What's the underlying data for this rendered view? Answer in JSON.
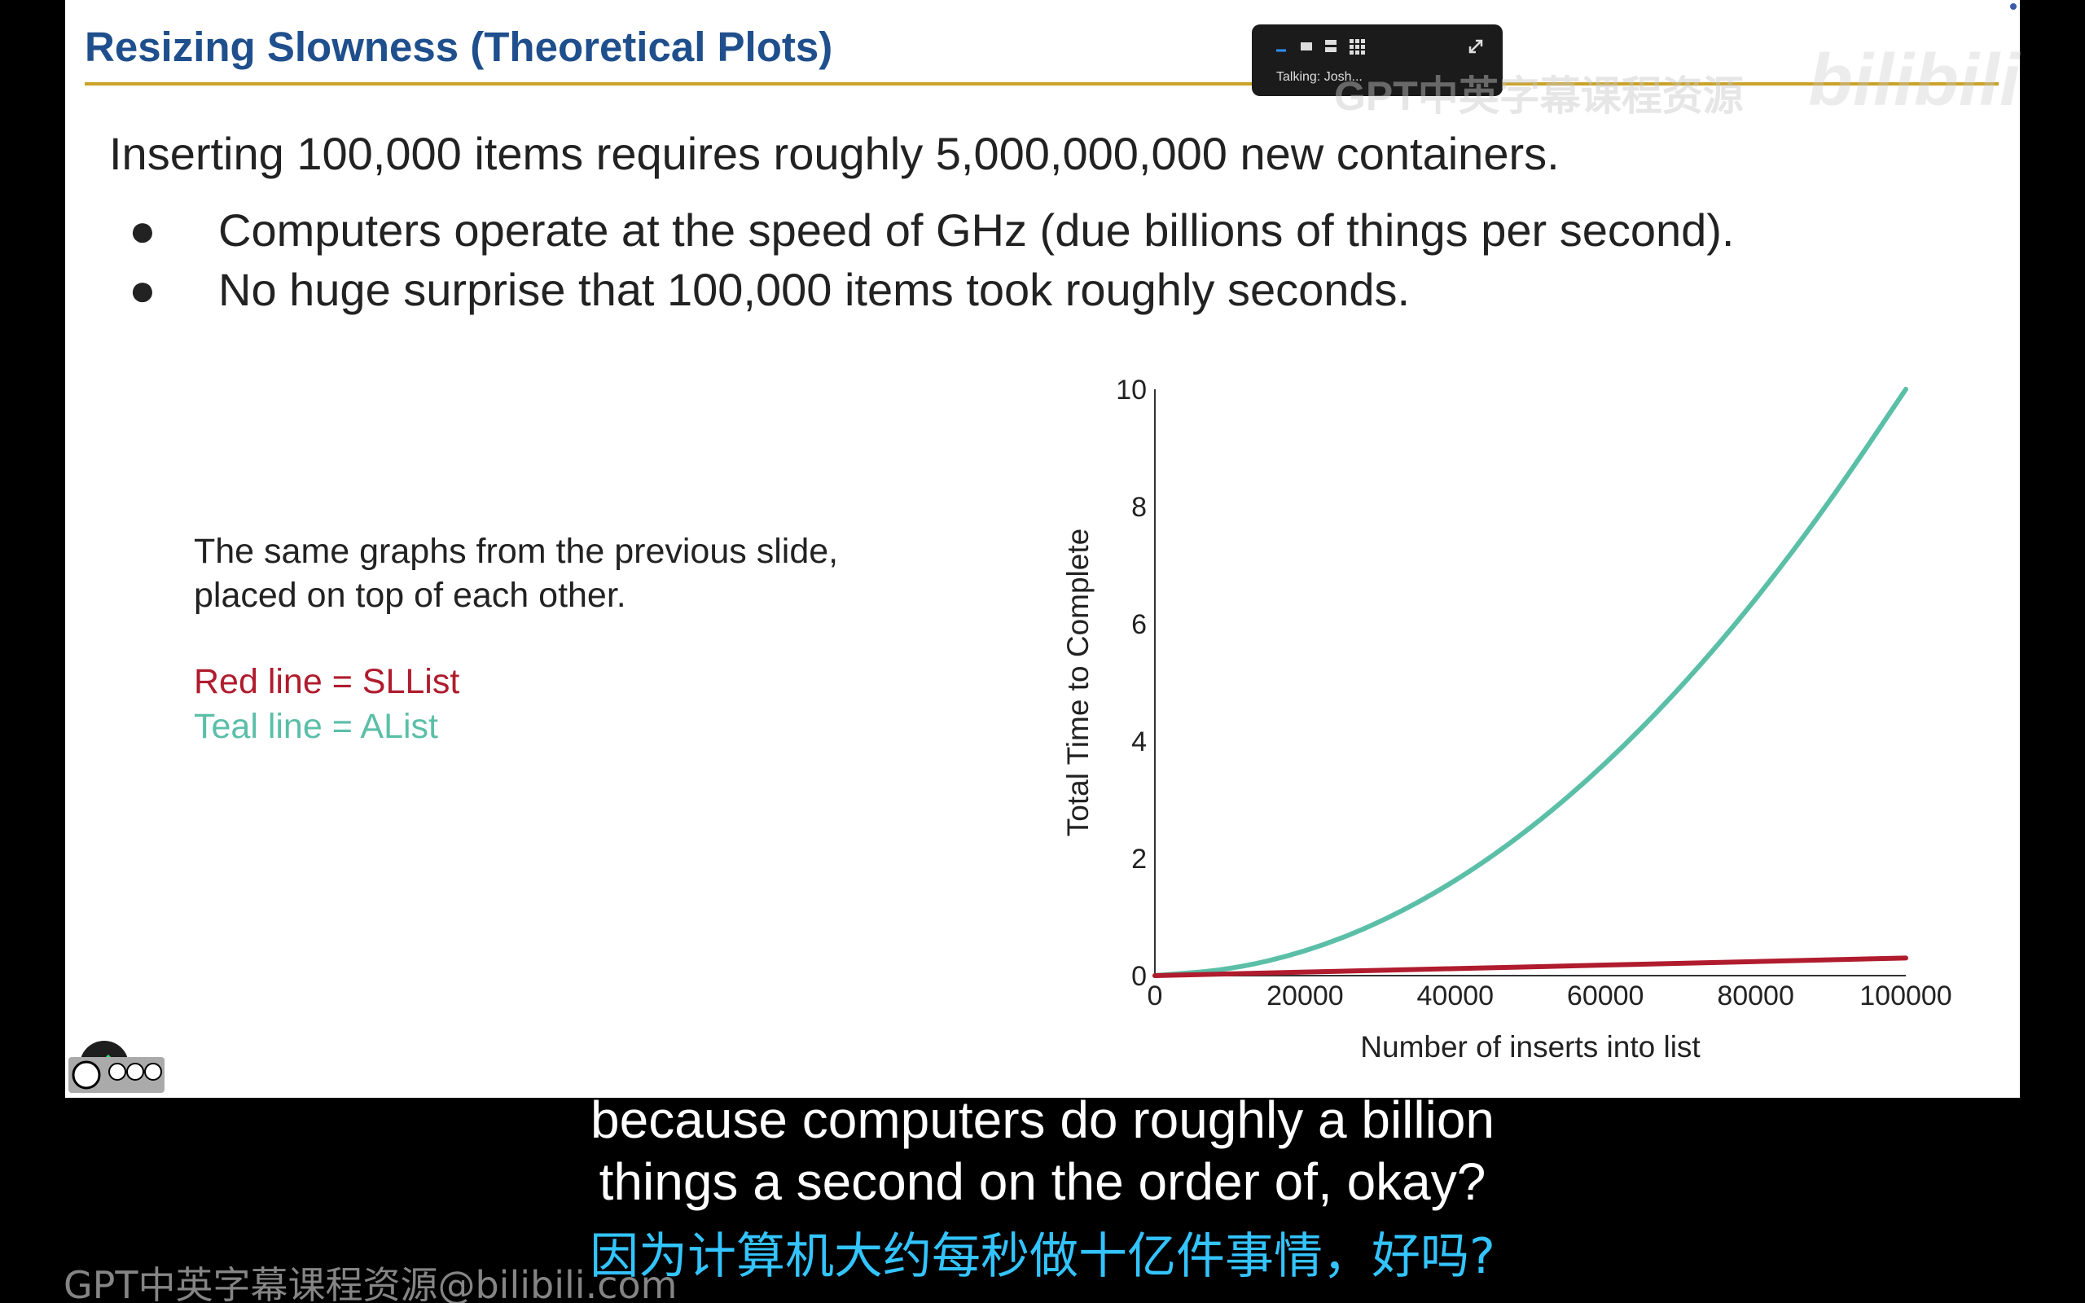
{
  "slide": {
    "title": "Resizing Slowness (Theoretical Plots)",
    "lead": "Inserting 100,000 items requires roughly 5,000,000,000 new containers.",
    "bullets": [
      {
        "marker": "●",
        "text": "Computers operate at the speed of GHz (due billions of things per second)."
      },
      {
        "marker": "●",
        "text": "No huge surprise that 100,000 items took roughly seconds."
      }
    ],
    "caption": "The same graphs from the previous slide, placed on top of each other.",
    "legend_red": "Red line = SLList",
    "legend_teal": "Teal line = AList",
    "colors": {
      "red": "#b01c2e",
      "teal": "#5bbfa8",
      "title": "#1f4f8c",
      "rule": "#c9a227"
    }
  },
  "chart_data": {
    "type": "line",
    "xlabel": "Number of inserts into list",
    "ylabel": "Total Time to Complete",
    "xlim": [
      0,
      100000
    ],
    "ylim": [
      0,
      10
    ],
    "xticks": [
      0,
      20000,
      40000,
      60000,
      80000,
      100000
    ],
    "yticks": [
      0,
      2,
      4,
      6,
      8,
      10
    ],
    "grid": false,
    "series": [
      {
        "color": "#5bbfa8",
        "x": [
          0,
          10000,
          20000,
          30000,
          40000,
          50000,
          60000,
          70000,
          80000,
          90000,
          100000
        ],
        "values": [
          0,
          0.1,
          0.4,
          0.9,
          1.6,
          2.5,
          3.6,
          4.9,
          6.4,
          8.1,
          10
        ]
      },
      {
        "color": "#b01c2e",
        "x": [
          0,
          20000,
          40000,
          60000,
          80000,
          100000
        ],
        "values": [
          0,
          0.06,
          0.12,
          0.18,
          0.24,
          0.3
        ]
      }
    ]
  },
  "call_panel": {
    "talking": "Talking: Josh..."
  },
  "watermark": {
    "top_text": "GPT中英字幕课程资源",
    "logo": "bilibili",
    "bottom": "GPT中英字幕课程资源@bilibili.com"
  },
  "subtitles": {
    "english": [
      "because computers do roughly a billion",
      "things a second on the order of, okay?"
    ],
    "chinese": "因为计算机大约每秒做十亿件事情，好吗?"
  },
  "icons": {
    "edit": "pencil-icon",
    "license": "cc-by-nc-sa-icon",
    "expand": "expand-icon",
    "minimize": "minimize-icon",
    "grid": "grid-view-icon"
  }
}
